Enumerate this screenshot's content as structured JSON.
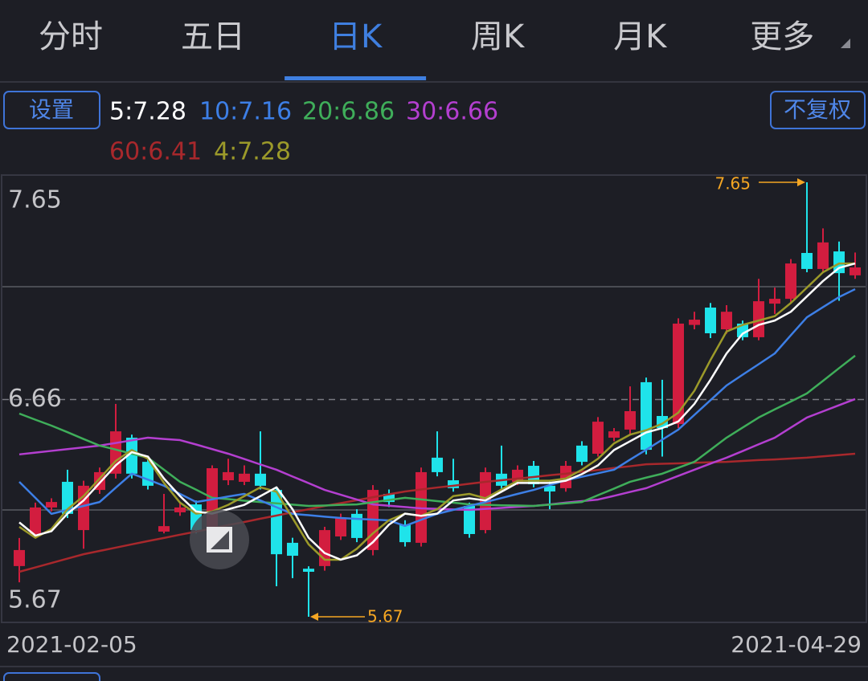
{
  "tabs": {
    "items": [
      "分时",
      "五日",
      "日K",
      "周K",
      "月K",
      "更多"
    ],
    "active": 2
  },
  "buttons": {
    "settings": "设置",
    "adjust": "不复权"
  },
  "ma_legend": [
    {
      "label": "5:7.28",
      "color": "#ffffff"
    },
    {
      "label": "10:7.16",
      "color": "#3d7fe6"
    },
    {
      "label": "20:6.86",
      "color": "#3fae5a"
    },
    {
      "label": "30:6.66",
      "color": "#b43fd0"
    },
    {
      "label": "60:6.41",
      "color": "#a8282c"
    },
    {
      "label": "4:7.28",
      "color": "#9c9a2a"
    }
  ],
  "chart_data": {
    "type": "candlestick",
    "categories": [
      "2021-02-05",
      null,
      null,
      null,
      null,
      null,
      null,
      null,
      null,
      null,
      null,
      null,
      null,
      null,
      null,
      null,
      null,
      null,
      null,
      null,
      null,
      null,
      null,
      null,
      null,
      null,
      null,
      null,
      null,
      null,
      null,
      null,
      null,
      null,
      null,
      null,
      null,
      null,
      null,
      null,
      null,
      null,
      null,
      null,
      null,
      null,
      null,
      null,
      null,
      null,
      null,
      null,
      "2021-04-29"
    ],
    "open": [
      5.901,
      6.047,
      6.168,
      6.285,
      6.065,
      6.248,
      6.322,
      6.486,
      6.376,
      6.058,
      6.146,
      6.182,
      6.065,
      6.292,
      6.285,
      6.322,
      6.248,
      6.007,
      5.889,
      5.901,
      6.036,
      6.139,
      5.974,
      6.23,
      6.091,
      6.007,
      6.395,
      6.292,
      6.175,
      6.065,
      6.322,
      6.285,
      6.358,
      6.267,
      6.256,
      6.45,
      6.413,
      6.486,
      6.523,
      6.739,
      6.585,
      6.548,
      7.0,
      7.079,
      6.98,
      7.006,
      6.944,
      7.097,
      7.119,
      7.328,
      7.255,
      7.335,
      7.226
    ],
    "high": [
      6.029,
      6.19,
      6.21,
      6.34,
      6.29,
      6.35,
      6.64,
      6.5,
      6.39,
      6.23,
      6.19,
      6.2,
      6.36,
      6.39,
      6.36,
      6.515,
      6.26,
      6.03,
      5.9,
      6.08,
      6.14,
      6.16,
      6.27,
      6.25,
      6.11,
      6.35,
      6.515,
      6.39,
      6.19,
      6.35,
      6.45,
      6.36,
      6.38,
      6.29,
      6.38,
      6.47,
      6.58,
      6.53,
      6.72,
      6.76,
      6.75,
      7.03,
      7.06,
      7.1,
      7.09,
      7.02,
      7.21,
      7.17,
      7.3,
      7.65,
      7.44,
      7.38,
      7.33
    ],
    "low": [
      5.827,
      6.03,
      6.15,
      6.12,
      5.98,
      6.23,
      6.3,
      6.3,
      6.25,
      6.05,
      6.13,
      6.05,
      6.05,
      6.27,
      6.27,
      6.25,
      5.809,
      5.846,
      5.67,
      5.88,
      6.02,
      6.01,
      5.95,
      6.17,
      5.99,
      5.99,
      6.31,
      6.24,
      6.03,
      6.05,
      6.25,
      6.27,
      6.26,
      6.16,
      6.24,
      6.36,
      6.4,
      6.47,
      6.5,
      6.41,
      6.4,
      6.53,
      6.98,
      6.94,
      6.96,
      6.93,
      6.93,
      7.05,
      7.1,
      7.24,
      7.24,
      7.11,
      7.21
    ],
    "close": [
      5.974,
      6.168,
      6.193,
      6.139,
      6.267,
      6.329,
      6.515,
      6.322,
      6.267,
      6.083,
      6.168,
      6.065,
      6.347,
      6.329,
      6.322,
      6.267,
      5.955,
      5.948,
      5.875,
      6.065,
      6.12,
      6.029,
      6.248,
      6.193,
      6.01,
      6.329,
      6.329,
      6.256,
      6.047,
      6.329,
      6.267,
      6.34,
      6.274,
      6.241,
      6.358,
      6.376,
      6.559,
      6.515,
      6.607,
      6.431,
      6.53,
      7.006,
      7.024,
      6.962,
      7.06,
      6.944,
      7.108,
      7.119,
      7.28,
      7.255,
      7.376,
      7.236,
      7.262
    ],
    "up_color": "#d21d3f",
    "down_color": "#1fe3ea",
    "lines": [
      {
        "color": "#a8282c",
        "values": [
          5.875,
          5.895,
          5.915,
          5.935,
          5.955,
          5.97,
          5.985,
          6.0,
          6.015,
          6.029,
          6.044,
          6.058,
          6.073,
          6.088,
          6.102,
          6.117,
          6.131,
          6.146,
          6.16,
          6.175,
          6.188,
          6.201,
          6.215,
          6.228,
          6.241,
          6.25,
          6.259,
          6.267,
          6.276,
          6.285,
          6.292,
          6.3,
          6.307,
          6.315,
          6.322,
          6.331,
          6.339,
          6.348,
          6.356,
          6.365,
          6.367,
          6.369,
          6.372,
          6.374,
          6.376,
          6.38,
          6.384,
          6.387,
          6.391,
          6.395,
          6.401,
          6.407,
          6.413
        ]
      },
      {
        "color": "#b43fd0",
        "values": [
          6.41,
          6.418,
          6.426,
          6.434,
          6.442,
          6.45,
          6.462,
          6.474,
          6.486,
          6.48,
          6.475,
          6.455,
          6.434,
          6.413,
          6.389,
          6.364,
          6.34,
          6.309,
          6.279,
          6.248,
          6.226,
          6.204,
          6.182,
          6.176,
          6.17,
          6.164,
          6.162,
          6.159,
          6.157,
          6.162,
          6.166,
          6.171,
          6.175,
          6.182,
          6.19,
          6.197,
          6.204,
          6.221,
          6.239,
          6.256,
          6.284,
          6.312,
          6.34,
          6.368,
          6.395,
          6.425,
          6.456,
          6.486,
          6.532,
          6.578,
          6.606,
          6.634,
          6.662
        ]
      },
      {
        "color": "#3fae5a",
        "values": [
          6.596,
          6.568,
          6.541,
          6.511,
          6.48,
          6.45,
          6.432,
          6.413,
          6.395,
          6.34,
          6.285,
          6.249,
          6.212,
          6.206,
          6.199,
          6.193,
          6.187,
          6.181,
          6.175,
          6.177,
          6.18,
          6.182,
          6.192,
          6.202,
          6.212,
          6.205,
          6.197,
          6.19,
          6.182,
          6.18,
          6.178,
          6.177,
          6.175,
          6.181,
          6.187,
          6.193,
          6.224,
          6.254,
          6.285,
          6.304,
          6.322,
          6.349,
          6.376,
          6.431,
          6.486,
          6.532,
          6.578,
          6.615,
          6.651,
          6.688,
          6.745,
          6.803,
          6.86
        ]
      },
      {
        "color": "#3d7fe6",
        "values": [
          6.285,
          6.212,
          6.139,
          6.157,
          6.175,
          6.193,
          6.258,
          6.322,
          6.295,
          6.267,
          6.23,
          6.193,
          6.205,
          6.218,
          6.23,
          6.2,
          6.169,
          6.139,
          6.133,
          6.126,
          6.12,
          6.116,
          6.113,
          6.109,
          6.084,
          6.112,
          6.139,
          6.157,
          6.175,
          6.193,
          6.211,
          6.23,
          6.248,
          6.27,
          6.292,
          6.308,
          6.324,
          6.34,
          6.386,
          6.431,
          6.477,
          6.523,
          6.59,
          6.657,
          6.724,
          6.773,
          6.821,
          6.87,
          6.953,
          7.035,
          7.081,
          7.127,
          7.163
        ]
      },
      {
        "color": "#9c9a2a",
        "values": [
          6.08,
          6.03,
          6.07,
          6.16,
          6.22,
          6.3,
          6.38,
          6.43,
          6.39,
          6.28,
          6.19,
          6.14,
          6.15,
          6.18,
          6.22,
          6.26,
          6.24,
          6.12,
          6.0,
          5.93,
          5.93,
          5.98,
          6.05,
          6.11,
          6.14,
          6.13,
          6.16,
          6.22,
          6.23,
          6.21,
          6.25,
          6.29,
          6.29,
          6.29,
          6.3,
          6.34,
          6.39,
          6.46,
          6.5,
          6.52,
          6.55,
          6.6,
          6.7,
          6.84,
          6.97,
          7.0,
          7.02,
          7.04,
          7.1,
          7.17,
          7.24,
          7.28,
          7.28
        ]
      },
      {
        "color": "#ffffff",
        "values": [
          6.1,
          6.04,
          6.06,
          6.14,
          6.2,
          6.28,
          6.36,
          6.42,
          6.4,
          6.3,
          6.22,
          6.15,
          6.14,
          6.16,
          6.18,
          6.22,
          6.26,
          6.16,
          6.03,
          5.96,
          5.93,
          5.95,
          6.01,
          6.09,
          6.14,
          6.13,
          6.14,
          6.2,
          6.21,
          6.2,
          6.24,
          6.28,
          6.28,
          6.28,
          6.29,
          6.32,
          6.36,
          6.43,
          6.47,
          6.51,
          6.53,
          6.56,
          6.64,
          6.75,
          6.87,
          6.96,
          7.0,
          7.02,
          7.06,
          7.13,
          7.2,
          7.26,
          7.28
        ]
      }
    ],
    "ylim": [
      5.67,
      7.65
    ],
    "yticks": [
      7.65,
      6.66,
      5.67
    ],
    "annotations": [
      7.65,
      5.67
    ],
    "annotation_color": "#f5a623"
  }
}
